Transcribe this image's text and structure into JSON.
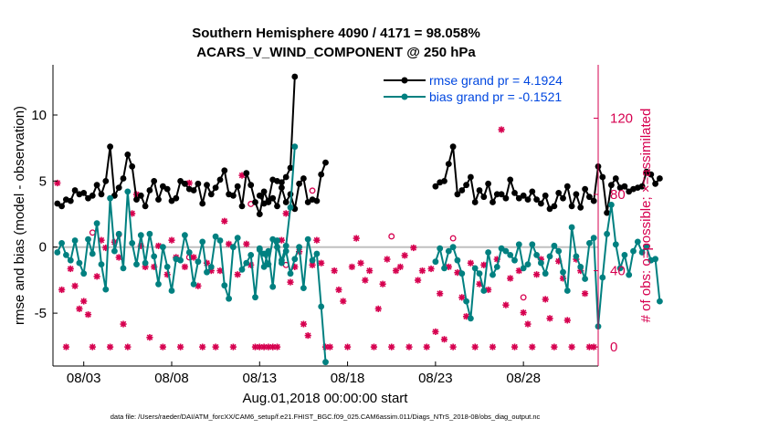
{
  "colors": {
    "rmse": "#000000",
    "bias": "#008080",
    "obs": "#d6004f",
    "zero": "#c0c0c0",
    "legend_text": "#0047e0",
    "axis": "#000000"
  },
  "chart_data": {
    "type": "line",
    "title": [
      "Southern Hemisphere 4090 / 4171 = 98.058%",
      "ACARS_V_WIND_COMPONENT @ 250 hPa"
    ],
    "xlabel": "Aug.01,2018 00:00:00 start",
    "ylabel_left": "rmse and bias (model - observation)",
    "ylabel_right": "# of obs: o=possible; ×=assimilated",
    "footer": "data file: /Users/raeder/DAI/ATM_forcXX/CAM6_setup/f.e21.FHIST_BGC.f09_025.CAM6assim.011/Diags_NTrS_2018-08/obs_diag_output.nc",
    "xlim": [
      1.25,
      32.25
    ],
    "ylim": [
      -9,
      13.8
    ],
    "y2lim": [
      -10,
      148
    ],
    "x_ticks": [
      {
        "v": 3,
        "label": "08/03"
      },
      {
        "v": 8,
        "label": "08/08"
      },
      {
        "v": 13,
        "label": "08/13"
      },
      {
        "v": 18,
        "label": "08/18"
      },
      {
        "v": 23,
        "label": "08/23"
      },
      {
        "v": 28,
        "label": "08/28"
      }
    ],
    "y_ticks": [
      {
        "v": -5,
        "label": "-5"
      },
      {
        "v": 0,
        "label": "0"
      },
      {
        "v": 5,
        "label": "5"
      },
      {
        "v": 10,
        "label": "10"
      }
    ],
    "y2_ticks": [
      {
        "v": 0,
        "label": "0"
      },
      {
        "v": 40,
        "label": "40"
      },
      {
        "v": 80,
        "label": "80"
      },
      {
        "v": 120,
        "label": "120"
      }
    ],
    "legend": [
      {
        "label": "rmse grand pr = 4.1924",
        "series": "rmse"
      },
      {
        "label": "bias grand pr = -0.1521",
        "series": "bias"
      }
    ],
    "series": [
      {
        "name": "rmse",
        "segments": [
          {
            "x0": 1.5,
            "values": [
              3.3,
              3.1,
              3.6,
              3.5,
              4.3,
              4.0,
              4.1,
              3.7,
              3.9,
              4.7,
              4.0,
              5.0,
              7.6,
              3.9,
              4.5,
              5.2,
              7.0,
              6.1,
              3.6,
              3.9,
              3.1,
              4.3,
              5.0,
              3.6,
              4.6,
              4.4,
              3.5,
              3.7,
              5.0,
              4.8,
              4.4,
              4.3,
              4.8,
              3.3,
              4.7,
              4.0,
              4.5,
              5.1,
              5.8,
              4.0,
              3.9,
              4.6,
              3.1,
              5.6,
              4.7,
              3.4,
              2.5,
              4.2,
              3.4,
              3.7,
              3.1,
              4.5,
              3.4,
              4.0,
              2.9,
              4.8,
              5.2,
              3.4,
              3.6,
              3.5,
              5.5,
              6.4
            ]
          },
          {
            "x0": 13.0,
            "values": [
              3.9,
              3.3,
              3.5,
              5.1,
              5.0,
              4.9,
              5.3,
              6.0,
              12.9
            ]
          },
          {
            "x0": 23.0,
            "values": [
              4.6,
              4.9,
              5.0,
              6.3,
              7.6,
              4.0,
              4.3,
              4.7,
              5.3,
              3.4,
              4.3,
              3.8,
              4.8,
              3.4,
              4.0,
              4.0,
              3.7,
              5.1,
              4.1,
              3.7,
              3.9,
              3.6,
              4.2,
              3.6,
              3.3,
              3.9,
              2.9,
              3.1,
              4.1,
              3.7,
              4.6,
              3.1,
              4.0,
              3.0,
              4.4,
              3.8,
              3.5,
              6.1,
              5.3,
              2.6,
              4.7,
              5.2,
              4.5,
              4.6,
              4.2,
              4.4,
              4.5,
              4.6,
              5.7,
              5.5,
              4.8,
              5.2
            ]
          }
        ]
      },
      {
        "name": "bias",
        "segments": [
          {
            "x0": 1.5,
            "values": [
              -0.4,
              0.3,
              -0.6,
              -1.0,
              0.5,
              -1.2,
              -2.0,
              0.6,
              -0.5,
              1.8,
              -1.3,
              -3.2,
              3.7,
              -0.3,
              1.0,
              -1.6,
              4.2,
              0.3,
              -1.3,
              0.9,
              -1.2,
              1.0,
              -0.7,
              -2.8,
              0.0,
              -1.5,
              -3.3,
              -0.9,
              -1.0,
              0.9,
              -0.4,
              -2.8,
              -1.1,
              0.4,
              -1.9,
              -1.5,
              0.8,
              0.5,
              -2.9,
              -3.9,
              0.0,
              0.7,
              -1.7,
              -1.2,
              -0.6,
              -3.8,
              -0.1,
              -1.5,
              -0.3,
              -3.0,
              0.5,
              -1.2,
              -0.3,
              -2.0,
              -0.9,
              0.0,
              -3.1,
              0.6,
              -1.0,
              -0.5,
              -4.5,
              -8.7
            ]
          },
          {
            "x0": 13.0,
            "values": [
              -0.2,
              -0.5,
              -1.3,
              0.6,
              0.0,
              -1.0,
              0.1,
              3.0,
              7.6
            ]
          },
          {
            "x0": 23.0,
            "values": [
              -1.1,
              -0.1,
              -1.6,
              -0.3,
              0.0,
              -1.0,
              -2.0,
              -4.1,
              -5.4,
              -1.6,
              -2.0,
              -3.3,
              -0.4,
              -2.1,
              -1.5,
              -0.1,
              -0.3,
              -0.6,
              -1.0,
              0.2,
              -1.6,
              -1.3,
              0.2,
              -0.6,
              -1.2,
              -2.0,
              -0.7,
              0.1,
              -0.3,
              -1.9,
              -3.3,
              1.5,
              -0.7,
              -1.5,
              -2.4,
              0.3,
              0.7,
              -6.0,
              -2.3,
              1.0,
              3.2,
              0.2,
              -1.6,
              -0.6,
              -2.1,
              -0.3,
              0.4,
              -0.4,
              0.0,
              -1.0,
              -0.9,
              -4.1
            ]
          }
        ]
      },
      {
        "name": "obs_assimilated",
        "y_axis": "right",
        "points": [
          [
            1.5,
            86
          ],
          [
            1.75,
            30
          ],
          [
            2.0,
            0
          ],
          [
            2.25,
            41
          ],
          [
            2.5,
            32
          ],
          [
            2.75,
            20
          ],
          [
            3.0,
            24
          ],
          [
            3.25,
            17
          ],
          [
            3.5,
            0
          ],
          [
            3.75,
            37
          ],
          [
            4.0,
            56
          ],
          [
            4.25,
            52
          ],
          [
            4.5,
            0
          ],
          [
            4.75,
            55
          ],
          [
            5.0,
            47
          ],
          [
            5.25,
            12
          ],
          [
            5.5,
            0
          ],
          [
            5.75,
            70
          ],
          [
            6.0,
            80
          ],
          [
            6.25,
            53
          ],
          [
            6.5,
            42
          ],
          [
            6.75,
            5
          ],
          [
            7.0,
            42
          ],
          [
            7.25,
            53
          ],
          [
            7.5,
            0
          ],
          [
            7.75,
            38
          ],
          [
            8.0,
            56
          ],
          [
            8.25,
            47
          ],
          [
            8.5,
            0
          ],
          [
            8.75,
            42
          ],
          [
            9.0,
            86
          ],
          [
            9.25,
            47
          ],
          [
            9.5,
            32
          ],
          [
            9.75,
            0
          ],
          [
            10.0,
            44
          ],
          [
            10.25,
            40
          ],
          [
            10.5,
            0
          ],
          [
            10.75,
            40
          ],
          [
            11.0,
            66
          ],
          [
            11.25,
            54
          ],
          [
            11.5,
            0
          ],
          [
            11.75,
            38
          ],
          [
            12.0,
            90
          ],
          [
            12.25,
            54
          ],
          [
            12.5,
            43
          ],
          [
            12.75,
            0
          ],
          [
            13.0,
            0
          ],
          [
            13.25,
            0
          ],
          [
            13.5,
            0
          ],
          [
            13.75,
            0
          ],
          [
            14.0,
            0
          ],
          [
            14.25,
            56
          ],
          [
            14.5,
            70
          ],
          [
            14.75,
            34
          ],
          [
            15.0,
            42
          ],
          [
            15.25,
            50
          ],
          [
            15.5,
            12
          ],
          [
            15.75,
            6
          ],
          [
            16.0,
            43
          ],
          [
            16.25,
            56
          ],
          [
            16.5,
            44
          ],
          [
            16.75,
            0
          ],
          [
            17.0,
            0
          ],
          [
            17.25,
            40
          ],
          [
            17.5,
            30
          ],
          [
            17.75,
            24
          ],
          [
            18.0,
            0
          ],
          [
            18.25,
            42
          ],
          [
            18.5,
            57
          ],
          [
            18.75,
            44
          ],
          [
            19.0,
            35
          ],
          [
            19.25,
            40
          ],
          [
            19.5,
            0
          ],
          [
            19.75,
            20
          ],
          [
            20.0,
            33
          ],
          [
            20.25,
            46
          ],
          [
            20.5,
            0
          ],
          [
            20.75,
            40
          ],
          [
            21.0,
            42
          ],
          [
            21.25,
            48
          ],
          [
            21.5,
            0
          ],
          [
            21.75,
            52
          ],
          [
            22.0,
            35
          ],
          [
            22.25,
            40
          ],
          [
            22.5,
            0
          ],
          [
            22.75,
            41
          ],
          [
            23.0,
            8
          ],
          [
            23.25,
            28
          ],
          [
            23.5,
            4
          ],
          [
            23.75,
            42
          ],
          [
            24.0,
            0
          ],
          [
            24.25,
            39
          ],
          [
            24.5,
            26
          ],
          [
            24.75,
            16
          ],
          [
            25.0,
            44
          ],
          [
            25.25,
            0
          ],
          [
            25.5,
            33
          ],
          [
            25.75,
            43
          ],
          [
            26.0,
            30
          ],
          [
            26.25,
            0
          ],
          [
            26.5,
            46
          ],
          [
            26.75,
            114
          ],
          [
            27.0,
            22
          ],
          [
            27.25,
            36
          ],
          [
            27.5,
            0
          ],
          [
            27.75,
            40
          ],
          [
            28.0,
            18
          ],
          [
            28.25,
            12
          ],
          [
            28.5,
            0
          ],
          [
            28.75,
            38
          ],
          [
            29.0,
            46
          ],
          [
            29.25,
            25
          ],
          [
            29.5,
            15
          ],
          [
            29.75,
            0
          ],
          [
            30.0,
            45
          ],
          [
            30.25,
            36
          ],
          [
            30.5,
            14
          ],
          [
            30.75,
            0
          ],
          [
            31.0,
            46
          ],
          [
            31.25,
            40
          ],
          [
            31.5,
            28
          ],
          [
            31.75,
            0
          ],
          [
            32.0,
            0
          ]
        ]
      },
      {
        "name": "obs_possible",
        "y_axis": "right",
        "points": [
          [
            3.5,
            60
          ],
          [
            5.0,
            59
          ],
          [
            9.0,
            47
          ],
          [
            12.5,
            75
          ],
          [
            14.5,
            43
          ],
          [
            16.0,
            82
          ],
          [
            20.5,
            58
          ],
          [
            24.0,
            57
          ],
          [
            28.0,
            26
          ]
        ]
      }
    ]
  }
}
